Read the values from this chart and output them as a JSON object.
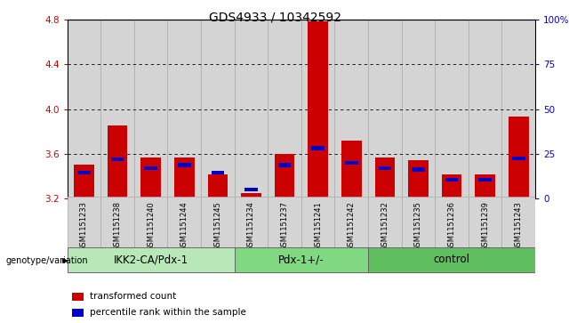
{
  "title": "GDS4933 / 10342592",
  "samples": [
    "GSM1151233",
    "GSM1151238",
    "GSM1151240",
    "GSM1151244",
    "GSM1151245",
    "GSM1151234",
    "GSM1151237",
    "GSM1151241",
    "GSM1151242",
    "GSM1151232",
    "GSM1151235",
    "GSM1151236",
    "GSM1151239",
    "GSM1151243"
  ],
  "red_values": [
    3.5,
    3.85,
    3.57,
    3.57,
    3.42,
    3.25,
    3.6,
    4.78,
    3.72,
    3.57,
    3.54,
    3.42,
    3.42,
    3.93
  ],
  "blue_values": [
    3.43,
    3.55,
    3.47,
    3.5,
    3.43,
    3.28,
    3.5,
    3.65,
    3.52,
    3.47,
    3.46,
    3.37,
    3.37,
    3.56
  ],
  "groups": [
    {
      "label": "IKK2-CA/Pdx-1",
      "start": 0,
      "end": 5,
      "color": "#b8e8b8"
    },
    {
      "label": "Pdx-1+/-",
      "start": 5,
      "end": 9,
      "color": "#80d880"
    },
    {
      "label": "control",
      "start": 9,
      "end": 14,
      "color": "#60c060"
    }
  ],
  "y_min": 3.2,
  "y_max": 4.8,
  "y_ticks": [
    3.2,
    3.6,
    4.0,
    4.4,
    4.8
  ],
  "y2_ticks": [
    0,
    25,
    50,
    75,
    100
  ],
  "y2_labels": [
    "0",
    "25",
    "50",
    "75",
    "100%"
  ],
  "bar_color": "#cc0000",
  "blue_color": "#0000cc",
  "col_bg_color": "#d4d4d4",
  "legend_items": [
    {
      "label": "transformed count",
      "color": "#cc0000"
    },
    {
      "label": "percentile rank within the sample",
      "color": "#0000cc"
    }
  ],
  "genotype_label": "genotype/variation",
  "title_fontsize": 10,
  "tick_fontsize": 7.5,
  "group_fontsize": 8.5,
  "bar_width": 0.6
}
